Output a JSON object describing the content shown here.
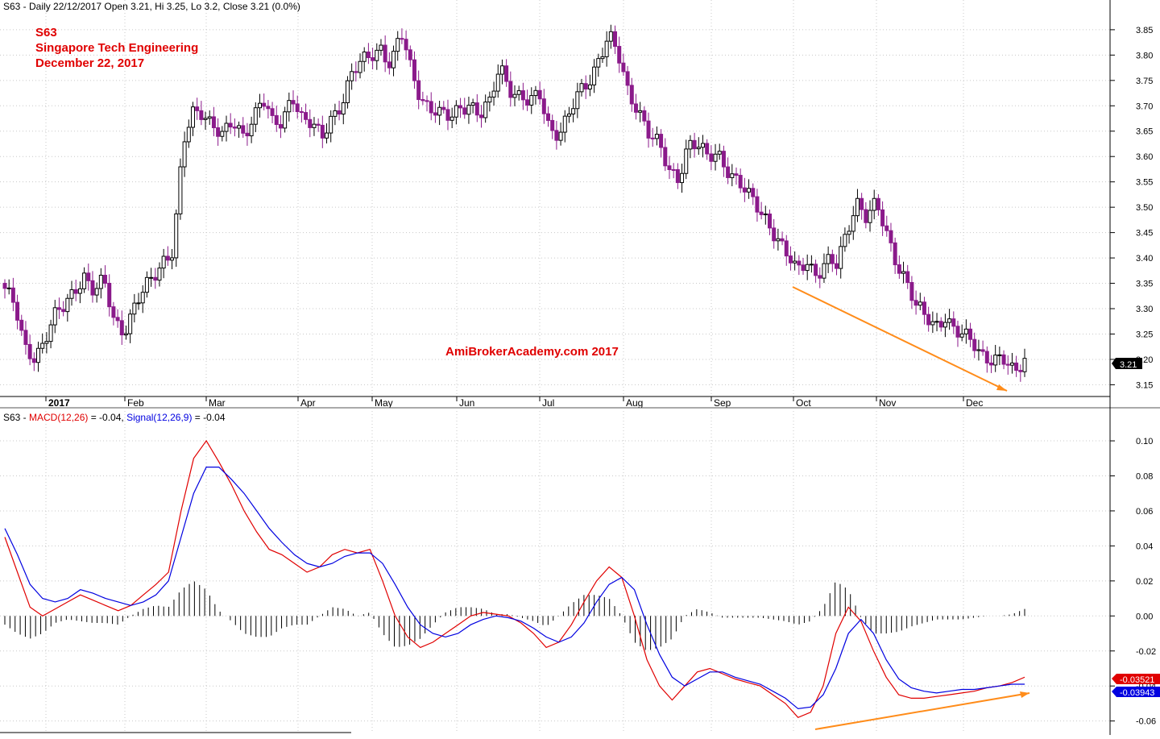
{
  "colors": {
    "background": "#ffffff",
    "bullish_candle": "#000000",
    "bearish_candle": "#8b1a8b",
    "macd_line": "#e00000",
    "signal_line": "#0000e0",
    "histogram": "#000000",
    "divergence_lines": "#ff8c1a",
    "title_text": "#e00000",
    "grid": "#c8c8c8"
  },
  "header": {
    "price_header": "S63 - Daily 22/12/2017 Open 3.21, Hi 3.25, Lo 3.2, Close 3.21 (0.0%)",
    "title_line1": "S63",
    "title_line2": "Singapore Tech Engineering",
    "title_line3": "December 22, 2017",
    "watermark": "AmiBrokerAcademy.com  2017",
    "last_price_badge": "3.21"
  },
  "macd_header": {
    "prefix": "S63 - ",
    "macd_label": "MACD(12,26)",
    "macd_value": " = -0.04, ",
    "signal_label": "Signal(12,26,9)",
    "signal_value": " = -0.04",
    "macd_badge": "-0.03521",
    "signal_badge": "-0.03943"
  },
  "chart_data": [
    {
      "type": "candlestick",
      "name": "S63 Daily",
      "x_axis_labels": [
        "2017",
        "Feb",
        "Mar",
        "Apr",
        "May",
        "Jun",
        "Jul",
        "Aug",
        "Sep",
        "Oct",
        "Nov",
        "Dec"
      ],
      "y_ticks": [
        "3.85",
        "3.80",
        "3.75",
        "3.70",
        "3.65",
        "3.60",
        "3.55",
        "3.50",
        "3.45",
        "3.40",
        "3.35",
        "3.30",
        "3.25",
        "3.20",
        "3.15"
      ],
      "ylim": [
        3.13,
        3.88
      ],
      "close_path": [
        3.34,
        3.3,
        3.22,
        3.21,
        3.24,
        3.28,
        3.3,
        3.34,
        3.37,
        3.33,
        3.35,
        3.28,
        3.26,
        3.3,
        3.33,
        3.36,
        3.4,
        3.42,
        3.62,
        3.68,
        3.69,
        3.67,
        3.64,
        3.66,
        3.64,
        3.68,
        3.72,
        3.66,
        3.66,
        3.73,
        3.68,
        3.66,
        3.63,
        3.68,
        3.71,
        3.76,
        3.78,
        3.8,
        3.82,
        3.78,
        3.84,
        3.77,
        3.72,
        3.7,
        3.68,
        3.67,
        3.7,
        3.71,
        3.68,
        3.7,
        3.78,
        3.74,
        3.72,
        3.7,
        3.72,
        3.66,
        3.65,
        3.68,
        3.72,
        3.75,
        3.8,
        3.84,
        3.79,
        3.72,
        3.7,
        3.65,
        3.62,
        3.57,
        3.56,
        3.63,
        3.62,
        3.59,
        3.61,
        3.58,
        3.55,
        3.52,
        3.5,
        3.48,
        3.44,
        3.4,
        3.37,
        3.4,
        3.37,
        3.39,
        3.38,
        3.45,
        3.52,
        3.48,
        3.5,
        3.45,
        3.4,
        3.36,
        3.3,
        3.28,
        3.27,
        3.29,
        3.25,
        3.24,
        3.23,
        3.21,
        3.2,
        3.19,
        3.17,
        3.21
      ],
      "callout_lines": 1
    },
    {
      "type": "line",
      "name": "MACD",
      "ylim": [
        -0.062,
        0.106
      ],
      "y_ticks": [
        "0.10",
        "0.08",
        "0.06",
        "0.04",
        "0.02",
        "0.00",
        "-0.02",
        "-0.04",
        "-0.06"
      ],
      "series": [
        {
          "name": "MACD(12,26)",
          "values": [
            0.045,
            0.025,
            0.005,
            0.0,
            0.004,
            0.008,
            0.012,
            0.009,
            0.006,
            0.003,
            0.006,
            0.012,
            0.018,
            0.025,
            0.06,
            0.09,
            0.1,
            0.088,
            0.075,
            0.06,
            0.048,
            0.038,
            0.035,
            0.03,
            0.025,
            0.028,
            0.035,
            0.038,
            0.036,
            0.038,
            0.02,
            0.0,
            -0.012,
            -0.018,
            -0.015,
            -0.01,
            -0.005,
            0.0,
            0.002,
            0.001,
            0.0,
            -0.004,
            -0.01,
            -0.018,
            -0.015,
            -0.005,
            0.008,
            0.02,
            0.028,
            0.022,
            0.0,
            -0.025,
            -0.04,
            -0.048,
            -0.04,
            -0.032,
            -0.03,
            -0.033,
            -0.036,
            -0.038,
            -0.04,
            -0.045,
            -0.05,
            -0.058,
            -0.055,
            -0.04,
            -0.01,
            0.005,
            -0.003,
            -0.02,
            -0.035,
            -0.045,
            -0.047,
            -0.047,
            -0.046,
            -0.045,
            -0.044,
            -0.043,
            -0.041,
            -0.04,
            -0.038,
            -0.035
          ]
        },
        {
          "name": "Signal(12,26,9)",
          "values": [
            0.05,
            0.035,
            0.018,
            0.01,
            0.008,
            0.01,
            0.015,
            0.013,
            0.01,
            0.008,
            0.006,
            0.008,
            0.012,
            0.02,
            0.045,
            0.07,
            0.085,
            0.085,
            0.078,
            0.07,
            0.06,
            0.05,
            0.042,
            0.035,
            0.03,
            0.028,
            0.03,
            0.034,
            0.036,
            0.036,
            0.03,
            0.018,
            0.005,
            -0.005,
            -0.01,
            -0.012,
            -0.01,
            -0.005,
            -0.002,
            0.0,
            -0.001,
            -0.003,
            -0.007,
            -0.012,
            -0.015,
            -0.012,
            -0.004,
            0.008,
            0.018,
            0.022,
            0.015,
            -0.005,
            -0.022,
            -0.035,
            -0.04,
            -0.036,
            -0.032,
            -0.032,
            -0.035,
            -0.037,
            -0.039,
            -0.043,
            -0.047,
            -0.053,
            -0.052,
            -0.045,
            -0.03,
            -0.01,
            -0.002,
            -0.01,
            -0.025,
            -0.036,
            -0.041,
            -0.043,
            -0.044,
            -0.043,
            -0.042,
            -0.042,
            -0.041,
            -0.04,
            -0.039,
            -0.039
          ]
        }
      ],
      "histogram": [
        -0.005,
        -0.01,
        -0.013,
        -0.01,
        -0.004,
        -0.002,
        -0.003,
        -0.004,
        -0.004,
        -0.005,
        0.0,
        0.004,
        0.006,
        0.005,
        0.015,
        0.02,
        0.015,
        0.003,
        -0.003,
        -0.01,
        -0.012,
        -0.012,
        -0.007,
        -0.005,
        -0.005,
        0.0,
        0.005,
        0.004,
        0.0,
        0.002,
        -0.01,
        -0.018,
        -0.017,
        -0.013,
        -0.005,
        0.002,
        0.005,
        0.005,
        0.004,
        0.001,
        0.001,
        -0.001,
        -0.003,
        -0.006,
        0.0,
        0.007,
        0.012,
        0.012,
        0.01,
        0.0,
        -0.015,
        -0.02,
        -0.018,
        -0.013,
        0.0,
        0.004,
        0.002,
        -0.001,
        -0.001,
        -0.001,
        -0.001,
        -0.002,
        -0.003,
        -0.005,
        -0.003,
        0.005,
        0.02,
        0.015,
        -0.001,
        -0.01,
        -0.01,
        -0.009,
        -0.006,
        -0.004,
        -0.002,
        -0.002,
        -0.002,
        -0.001,
        0.0,
        0.0,
        0.001,
        0.004
      ]
    }
  ]
}
